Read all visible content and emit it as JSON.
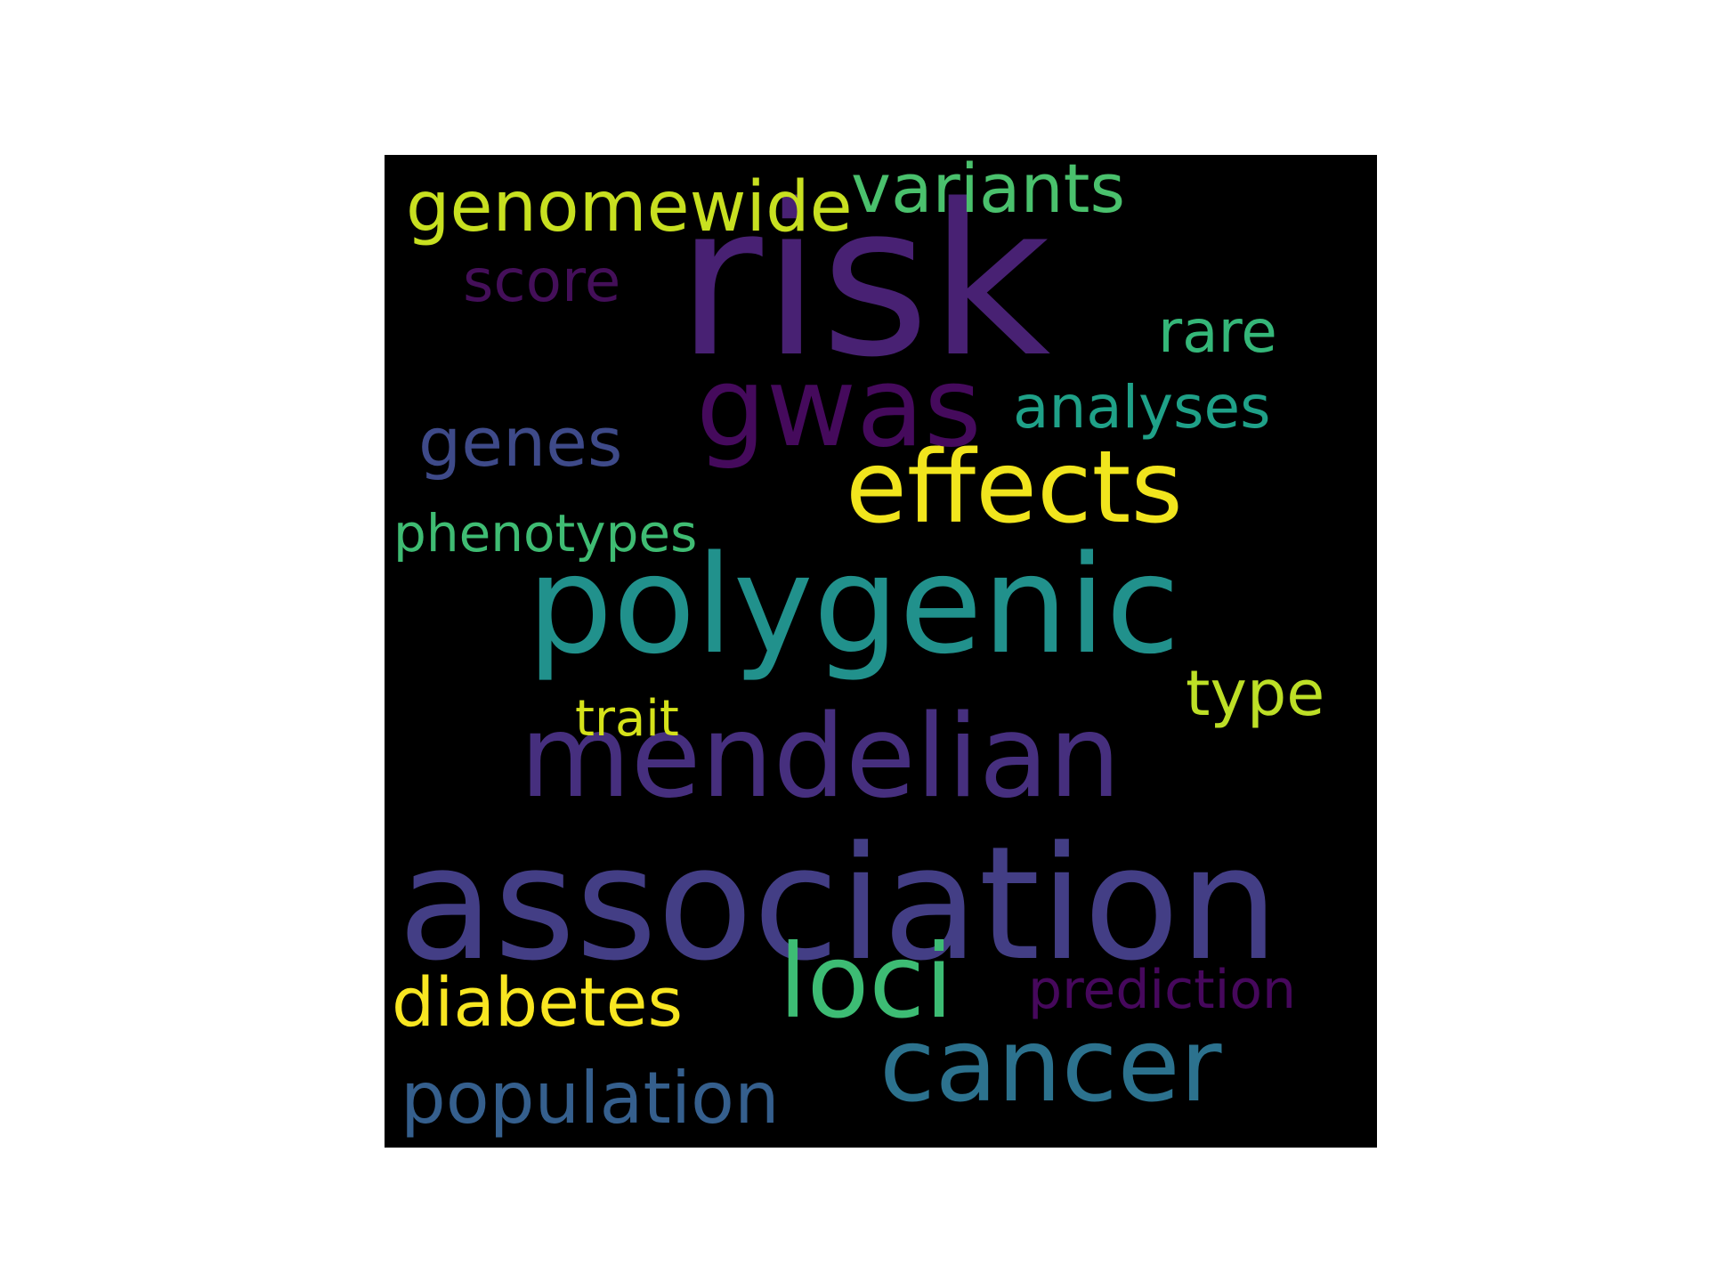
{
  "word_cloud": {
    "background": "#000000",
    "words": [
      {
        "text": "risk",
        "color": "#482173"
      },
      {
        "text": "association",
        "color": "#433e85"
      },
      {
        "text": "polygenic",
        "color": "#21918c"
      },
      {
        "text": "mendelian",
        "color": "#462f7e"
      },
      {
        "text": "effects",
        "color": "#f1e51d"
      },
      {
        "text": "gwas",
        "color": "#450a5c"
      },
      {
        "text": "loci",
        "color": "#3dbc74"
      },
      {
        "text": "cancer",
        "color": "#2c728e"
      },
      {
        "text": "genomewide",
        "color": "#c8e020"
      },
      {
        "text": "variants",
        "color": "#4ac16d"
      },
      {
        "text": "population",
        "color": "#355f8d"
      },
      {
        "text": "diabetes",
        "color": "#f8e621"
      },
      {
        "text": "genes",
        "color": "#3e4a89"
      },
      {
        "text": "analyses",
        "color": "#1fa188"
      },
      {
        "text": "score",
        "color": "#440f59"
      },
      {
        "text": "rare",
        "color": "#35b779"
      },
      {
        "text": "prediction",
        "color": "#46085c"
      },
      {
        "text": "type",
        "color": "#bddf26"
      },
      {
        "text": "phenotypes",
        "color": "#3fbc73"
      },
      {
        "text": "trait",
        "color": "#d5e21a"
      }
    ]
  }
}
